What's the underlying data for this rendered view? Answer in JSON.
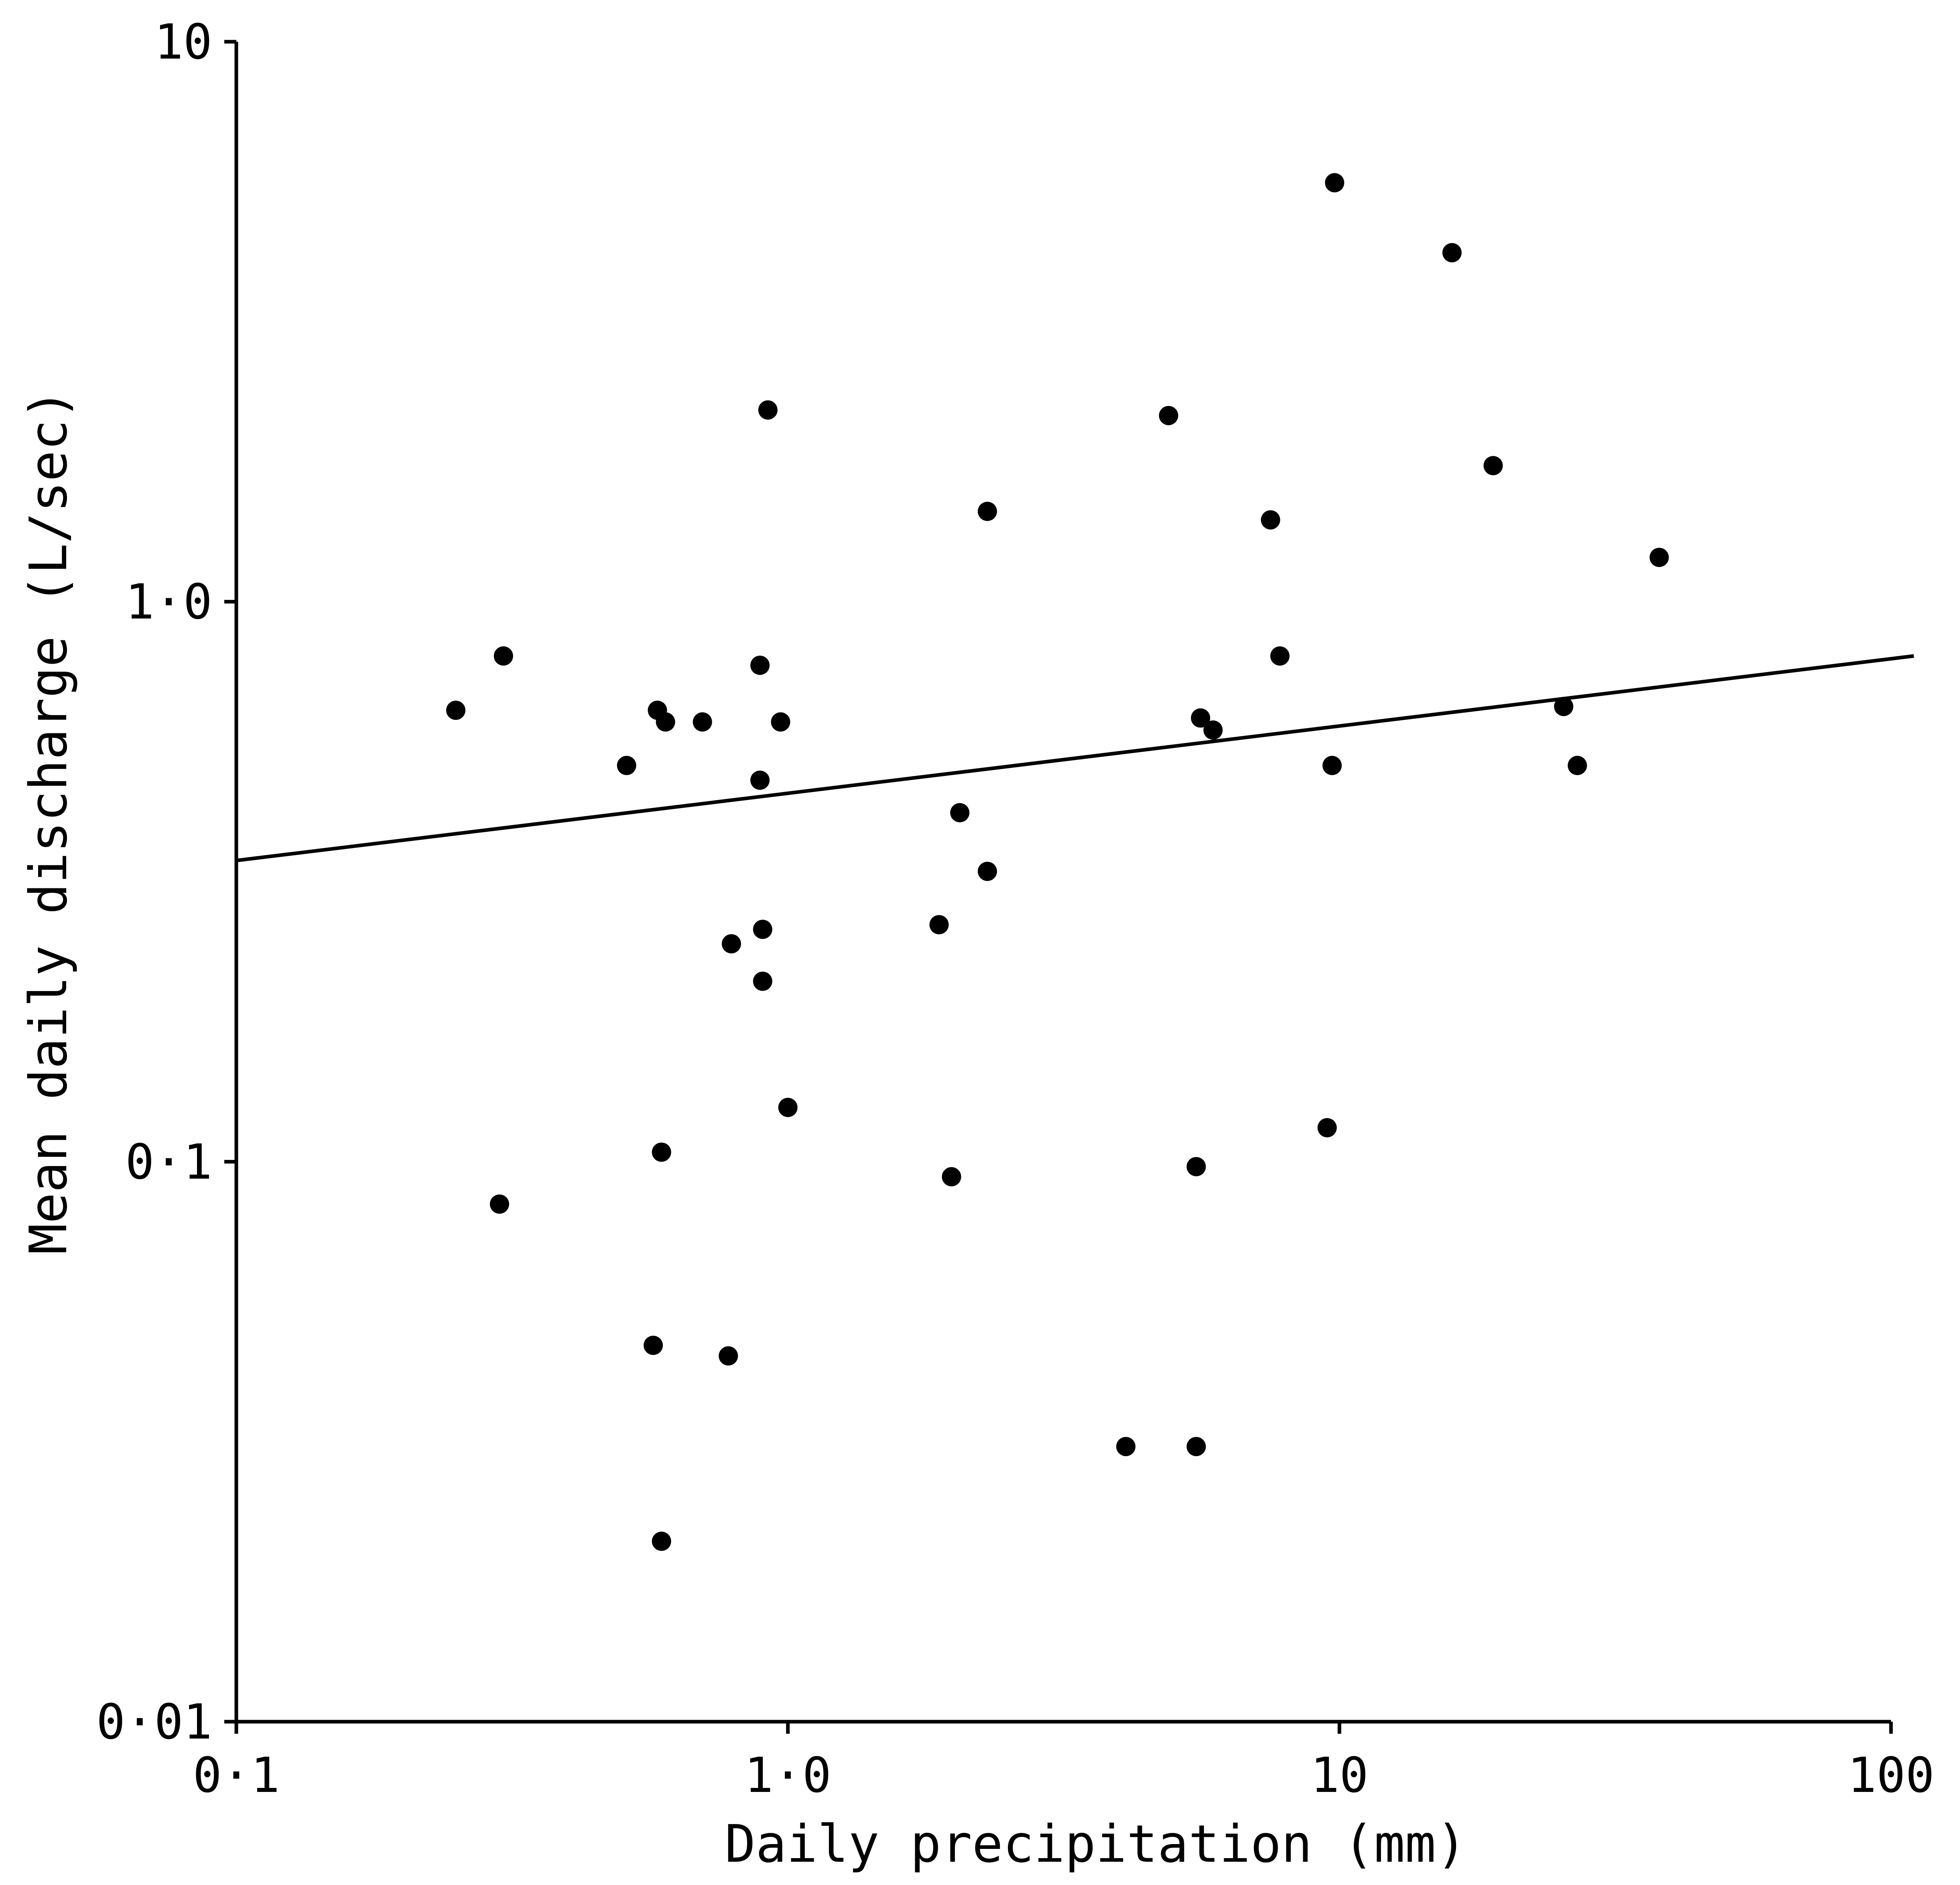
{
  "chart_data": {
    "type": "scatter",
    "title": "",
    "xlabel": "Daily precipitation (mm)",
    "ylabel": "Mean daily discharge (L/sec)",
    "x_scale": "log",
    "y_scale": "log",
    "xlim": [
      0.1,
      100
    ],
    "ylim": [
      0.01,
      10
    ],
    "x_ticks": [
      {
        "value": 0.1,
        "label": "0·1"
      },
      {
        "value": 1,
        "label": "1·0"
      },
      {
        "value": 10,
        "label": "10"
      },
      {
        "value": 100,
        "label": "100"
      }
    ],
    "y_ticks": [
      {
        "value": 0.01,
        "label": "0·01"
      },
      {
        "value": 0.1,
        "label": "0·1"
      },
      {
        "value": 1,
        "label": "1·0"
      },
      {
        "value": 10,
        "label": "10"
      }
    ],
    "grid": false,
    "legend": "none",
    "points": [
      {
        "x": 0.25,
        "y": 0.64
      },
      {
        "x": 0.305,
        "y": 0.8
      },
      {
        "x": 0.3,
        "y": 0.084
      },
      {
        "x": 0.51,
        "y": 0.51
      },
      {
        "x": 0.58,
        "y": 0.64
      },
      {
        "x": 0.6,
        "y": 0.61
      },
      {
        "x": 0.59,
        "y": 0.104
      },
      {
        "x": 0.57,
        "y": 0.047
      },
      {
        "x": 0.59,
        "y": 0.021
      },
      {
        "x": 0.7,
        "y": 0.61
      },
      {
        "x": 0.79,
        "y": 0.245
      },
      {
        "x": 0.78,
        "y": 0.045
      },
      {
        "x": 0.89,
        "y": 0.77
      },
      {
        "x": 0.89,
        "y": 0.48
      },
      {
        "x": 0.9,
        "y": 0.26
      },
      {
        "x": 0.9,
        "y": 0.21
      },
      {
        "x": 0.92,
        "y": 2.2
      },
      {
        "x": 0.97,
        "y": 0.61
      },
      {
        "x": 1.0,
        "y": 0.125
      },
      {
        "x": 1.88,
        "y": 0.265
      },
      {
        "x": 1.98,
        "y": 0.094
      },
      {
        "x": 2.05,
        "y": 0.42
      },
      {
        "x": 2.3,
        "y": 0.33
      },
      {
        "x": 2.3,
        "y": 1.45
      },
      {
        "x": 4.1,
        "y": 0.031
      },
      {
        "x": 4.9,
        "y": 2.15
      },
      {
        "x": 5.5,
        "y": 0.098
      },
      {
        "x": 5.5,
        "y": 0.031
      },
      {
        "x": 5.6,
        "y": 0.62
      },
      {
        "x": 5.9,
        "y": 0.59
      },
      {
        "x": 7.5,
        "y": 1.4
      },
      {
        "x": 7.8,
        "y": 0.8
      },
      {
        "x": 9.5,
        "y": 0.115
      },
      {
        "x": 9.7,
        "y": 0.51
      },
      {
        "x": 9.8,
        "y": 5.6
      },
      {
        "x": 16.0,
        "y": 4.2
      },
      {
        "x": 19.0,
        "y": 1.75
      },
      {
        "x": 25.5,
        "y": 0.65
      },
      {
        "x": 27.0,
        "y": 0.51
      },
      {
        "x": 38.0,
        "y": 1.2
      }
    ],
    "fit_line": {
      "x": [
        0.1,
        110
      ],
      "y": [
        0.345,
        0.8
      ]
    }
  }
}
